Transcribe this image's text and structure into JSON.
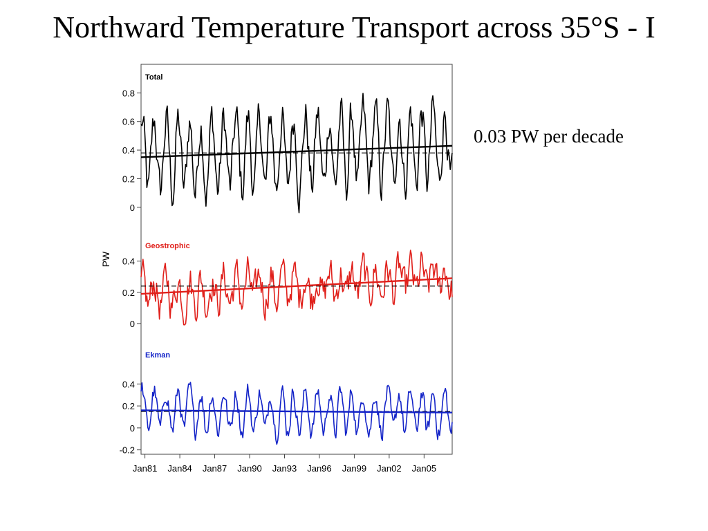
{
  "slide": {
    "title": "Northward Temperature Transport across 35°S - I",
    "note": "0.03 PW per decade"
  },
  "chart_data": {
    "type": "line",
    "ylabel": "PW",
    "x_ticks": [
      "Jan81",
      "Jan84",
      "Jan87",
      "Jan90",
      "Jan93",
      "Jan96",
      "Jan99",
      "Jan02",
      "Jan05"
    ],
    "x_range": [
      "1980-09",
      "2007-06"
    ],
    "panels": [
      {
        "name": "Total",
        "color": "#000000",
        "yticks": [
          "0.8",
          "0.6",
          "0.4",
          "0.2",
          "0"
        ],
        "ylim": [
          -0.18,
          1.0
        ],
        "mean": 0.38,
        "trend_start": 0.35,
        "trend_end": 0.43,
        "amplitude": 0.25,
        "noise": 0.12
      },
      {
        "name": "Geostrophic",
        "color": "#e0201b",
        "yticks": [
          "0.4",
          "0.2",
          "0"
        ],
        "ylim": [
          -0.12,
          0.58
        ],
        "mean": 0.24,
        "trend_start": 0.19,
        "trend_end": 0.29,
        "amplitude": 0.08,
        "noise": 0.1
      },
      {
        "name": "Ekman",
        "color": "#1424c8",
        "yticks": [
          "0.4",
          "0.2",
          "0",
          "-0.2"
        ],
        "ylim": [
          -0.24,
          0.78
        ],
        "mean": 0.15,
        "trend_start": 0.16,
        "trend_end": 0.14,
        "amplitude": 0.18,
        "noise": 0.08
      }
    ]
  }
}
